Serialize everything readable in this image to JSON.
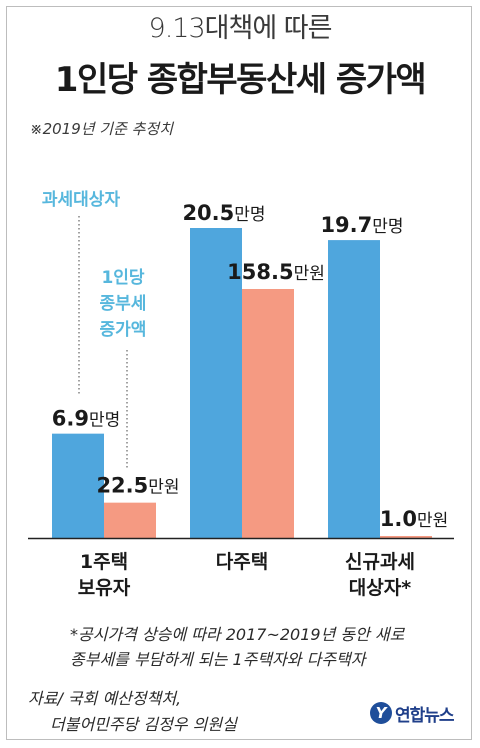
{
  "header": {
    "subtitle": "9.13대책에 따른",
    "title": "1인당 종합부동산세 증가액",
    "note": "※2019년 기준 추정치"
  },
  "legend": {
    "taxpayers": "과세대상자",
    "increase": [
      "1인당",
      "종부세",
      "증가액"
    ]
  },
  "colors": {
    "taxpayers": "#4fa6dd",
    "increase": "#f59a82",
    "legend_text": "#57b7dd"
  },
  "chart_data": {
    "type": "bar",
    "categories": [
      [
        "1주택",
        "보유자"
      ],
      [
        "다주택"
      ],
      [
        "신규과세",
        "대상자*"
      ]
    ],
    "series": [
      {
        "name": "과세대상자",
        "values": [
          6.9,
          20.5,
          19.7
        ],
        "labels": [
          "6.9만명",
          "20.5만명",
          "19.7만명"
        ]
      },
      {
        "name": "1인당 종부세 증가액",
        "values": [
          22.5,
          158.5,
          1.0
        ],
        "labels": [
          "22.5만원",
          "158.5만원",
          "1.0만원"
        ]
      }
    ]
  },
  "footnote": [
    "*공시가격 상승에 따라 2017~2019년 동안 새로",
    "종부세를 부담하게 되는 1주택자와 다주택자"
  ],
  "source": [
    "자료/ 국회 예산정책처,",
    "더불어민주당 김정우 의원실"
  ],
  "logo": {
    "mark": "Y",
    "text": "연합뉴스"
  }
}
